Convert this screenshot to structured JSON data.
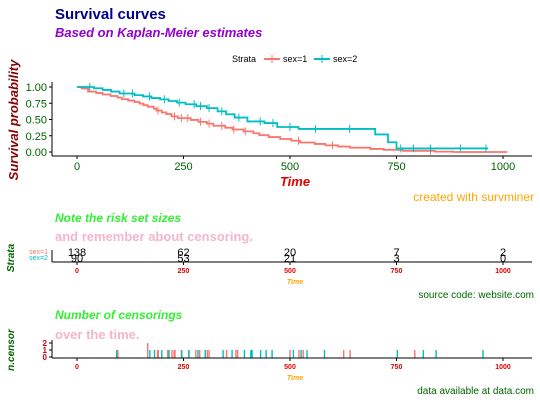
{
  "chart_data": [
    {
      "type": "line",
      "title": "Survival curves",
      "subtitle": "Based on Kaplan-Meier estimates",
      "caption": "created with survminer",
      "xlabel": "Time",
      "ylabel": "Survival probability",
      "xlim": [
        0,
        1022
      ],
      "ylim": [
        0,
        1
      ],
      "x_ticks": [
        "0",
        "250",
        "500",
        "750",
        "1000"
      ],
      "y_ticks": [
        "0.00",
        "0.25",
        "0.50",
        "0.75",
        "1.00"
      ],
      "legend_title": "Strata",
      "legend_position": "top",
      "series": [
        {
          "name": "sex=1",
          "color": "#F8766D",
          "x": [
            0,
            11,
            26,
            45,
            60,
            79,
            95,
            105,
            120,
            135,
            147,
            156,
            166,
            180,
            186,
            199,
            210,
            222,
            237,
            267,
            285,
            305,
            320,
            348,
            365,
            391,
            414,
            428,
            450,
            477,
            503,
            524,
            558,
            583,
            613,
            641,
            689,
            720,
            765,
            840,
            883,
            1010
          ],
          "y": [
            1.0,
            0.978,
            0.93,
            0.909,
            0.885,
            0.862,
            0.838,
            0.814,
            0.791,
            0.769,
            0.744,
            0.72,
            0.697,
            0.668,
            0.638,
            0.609,
            0.584,
            0.548,
            0.521,
            0.493,
            0.464,
            0.436,
            0.404,
            0.374,
            0.346,
            0.317,
            0.289,
            0.259,
            0.23,
            0.2,
            0.173,
            0.146,
            0.124,
            0.102,
            0.084,
            0.066,
            0.047,
            0.034,
            0.018,
            0.006,
            0.0,
            0.0
          ],
          "censored_x": [
            190,
            229,
            245,
            260,
            290,
            310,
            340,
            368,
            395,
            520,
            600,
            830
          ]
        },
        {
          "name": "sex=2",
          "color": "#00BFC4",
          "x": [
            0,
            40,
            60,
            80,
            100,
            135,
            155,
            175,
            195,
            215,
            235,
            255,
            280,
            305,
            330,
            350,
            370,
            400,
            440,
            470,
            520,
            545,
            590,
            650,
            700,
            730,
            750,
            965
          ],
          "y": [
            1.0,
            0.98,
            0.955,
            0.93,
            0.9,
            0.875,
            0.855,
            0.83,
            0.81,
            0.785,
            0.76,
            0.735,
            0.705,
            0.675,
            0.625,
            0.58,
            0.53,
            0.47,
            0.445,
            0.385,
            0.355,
            0.355,
            0.355,
            0.355,
            0.27,
            0.15,
            0.055,
            0.055
          ],
          "censored_x": [
            30,
            110,
            130,
            170,
            205,
            240,
            275,
            290,
            310,
            340,
            380,
            430,
            460,
            500,
            560,
            640,
            760,
            790,
            830,
            900,
            960
          ]
        }
      ]
    },
    {
      "type": "table",
      "title": "Note the risk set sizes",
      "subtitle": "and remember about censoring.",
      "caption": "source code: website.com",
      "xlabel": "Time",
      "ylabel": "Strata",
      "x_ticks": [
        "0",
        "250",
        "500",
        "750",
        "1000"
      ],
      "rows": [
        {
          "name": "sex=1",
          "color": "#F8766D",
          "values": [
            "138",
            "62",
            "20",
            "7",
            "2"
          ]
        },
        {
          "name": "sex=2",
          "color": "#00BFC4",
          "values": [
            "90",
            "53",
            "21",
            "3",
            "0"
          ]
        }
      ]
    },
    {
      "type": "bar",
      "title": "Number of censorings",
      "subtitle": "over the time.",
      "caption": "data available at data.com",
      "xlabel": "Time",
      "ylabel": "n.censor",
      "x_ticks": [
        "0",
        "250",
        "500",
        "750",
        "1000"
      ],
      "y_ticks": [
        "0",
        "1",
        "2"
      ],
      "ylim": [
        0,
        2
      ],
      "series": [
        {
          "name": "sex=1",
          "color": "#F8766D",
          "x": [
            96,
            166,
            189,
            191,
            213,
            223,
            228,
            230,
            245,
            262,
            279,
            288,
            306,
            310,
            351,
            373,
            377,
            500,
            521,
            531,
            626,
            641,
            793
          ],
          "values": [
            1,
            2,
            1,
            1,
            1,
            1,
            1,
            1,
            1,
            1,
            1,
            1,
            1,
            1,
            1,
            1,
            1,
            1,
            1,
            1,
            1,
            1,
            1
          ]
        },
        {
          "name": "sex=2",
          "color": "#00BFC4",
          "x": [
            93,
            171,
            182,
            199,
            216,
            246,
            263,
            284,
            301,
            343,
            364,
            393,
            408,
            411,
            431,
            444,
            458,
            508,
            526,
            540,
            581,
            752,
            813,
            843,
            953
          ],
          "values": [
            1,
            1,
            1,
            1,
            1,
            1,
            1,
            1,
            1,
            1,
            1,
            1,
            1,
            1,
            1,
            1,
            1,
            1,
            1,
            1,
            1,
            1,
            1,
            1,
            1
          ]
        }
      ]
    }
  ]
}
